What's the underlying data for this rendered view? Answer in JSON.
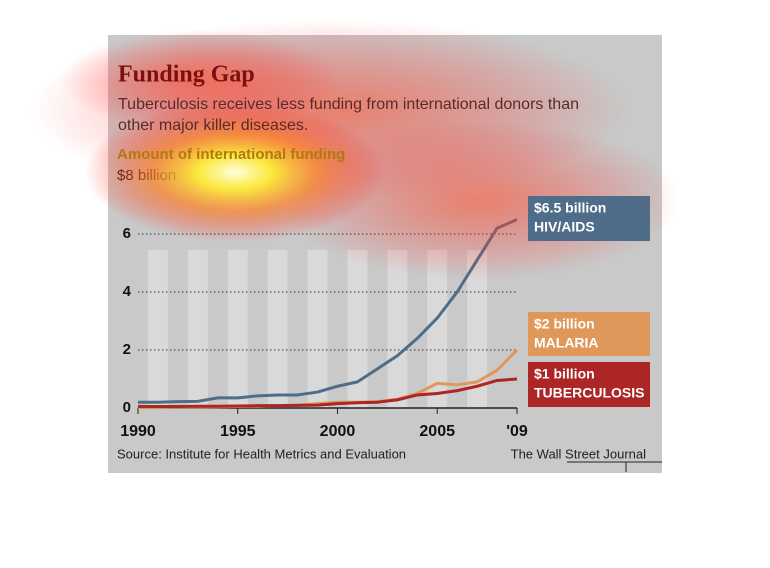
{
  "chart_data": {
    "type": "line",
    "title": "Funding Gap",
    "subtitle": "Tuberculosis receives less funding from international donors than other major killer diseases.",
    "y_label": "Amount of international funding",
    "source": "Source: Institute for Health Metrics and Evaluation",
    "credit": "The Wall Street Journal",
    "x": [
      1990,
      1991,
      1992,
      1993,
      1994,
      1995,
      1996,
      1997,
      1998,
      1999,
      2000,
      2001,
      2002,
      2003,
      2004,
      2005,
      2006,
      2007,
      2008,
      2009
    ],
    "xlim": [
      1990,
      2009
    ],
    "xticks": [
      1990,
      1995,
      2000,
      2005,
      {
        "value": 2009,
        "label": "'09"
      }
    ],
    "ylim": [
      0,
      8
    ],
    "yticks": [
      0,
      2,
      4,
      6,
      {
        "value": 8,
        "label": "$8 billion"
      }
    ],
    "grid": true,
    "series": [
      {
        "name": "HIV/AIDS",
        "color": "#4f6d88",
        "values": [
          0.2,
          0.2,
          0.22,
          0.23,
          0.35,
          0.35,
          0.42,
          0.45,
          0.45,
          0.55,
          0.75,
          0.9,
          1.35,
          1.8,
          2.4,
          3.1,
          4.0,
          5.1,
          6.2,
          6.5
        ],
        "value_labels": [
          null,
          null,
          null,
          null,
          null,
          null,
          null,
          null,
          null,
          null,
          null,
          null,
          null,
          null,
          null,
          null,
          null,
          null,
          null,
          "$6.5 billion"
        ]
      },
      {
        "name": "MALARIA",
        "color": "#e0985a",
        "values": [
          0.02,
          0.02,
          0.03,
          0.03,
          0.04,
          0.05,
          0.06,
          0.08,
          0.1,
          0.15,
          0.2,
          0.2,
          0.22,
          0.3,
          0.5,
          0.85,
          0.8,
          0.9,
          1.3,
          2.0
        ],
        "value_labels": [
          null,
          null,
          null,
          null,
          null,
          null,
          null,
          null,
          null,
          null,
          null,
          null,
          null,
          null,
          null,
          null,
          null,
          null,
          null,
          "$2 billion"
        ]
      },
      {
        "name": "TUBERCULOSIS",
        "color": "#ad2626",
        "values": [
          0.05,
          0.05,
          0.05,
          0.06,
          0.06,
          0.07,
          0.08,
          0.08,
          0.09,
          0.1,
          0.15,
          0.18,
          0.2,
          0.28,
          0.45,
          0.5,
          0.6,
          0.75,
          0.95,
          1.0
        ],
        "value_labels": [
          null,
          null,
          null,
          null,
          null,
          null,
          null,
          null,
          null,
          null,
          null,
          null,
          null,
          null,
          null,
          null,
          null,
          null,
          null,
          "$1 billion"
        ]
      }
    ]
  }
}
